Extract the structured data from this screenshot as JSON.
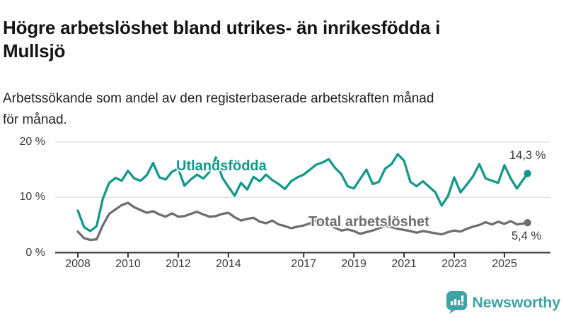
{
  "header": {
    "title": "Högre arbetslöshet bland utrikes- än inrikesfödda i\nMullsjö",
    "subtitle": "Arbetssökande som andel av den registerbaserade arbetskraften månad\nför månad."
  },
  "chart_data": {
    "type": "line",
    "unit": "%",
    "title": "Högre arbetslöshet bland utrikes- än inrikesfödda i Mullsjö",
    "x_axis": "year (monthly data)",
    "x_start": 2008.0,
    "x_step_years": 0.25,
    "x_last": 2025.92,
    "x_tick_labels": [
      "2008",
      "2010",
      "2012",
      "2014",
      "2017",
      "2019",
      "2021",
      "2023",
      "2025"
    ],
    "y_ticks": [
      0,
      10,
      20
    ],
    "y_tick_labels": [
      "0 %",
      "10 %",
      "20 %"
    ],
    "ylim": [
      0,
      21
    ],
    "grid": "horizontal",
    "series": [
      {
        "name": "Utlandsfödda",
        "color": "#10998c",
        "end_label": "14,3 %",
        "end_value": 14.3,
        "values": [
          7.6,
          4.6,
          3.9,
          4.8,
          9.8,
          12.6,
          13.5,
          13.0,
          14.8,
          13.4,
          13.0,
          14.0,
          16.2,
          13.6,
          13.2,
          14.6,
          15.2,
          12.1,
          13.2,
          14.1,
          13.4,
          14.6,
          17.2,
          13.6,
          11.9,
          10.3,
          12.6,
          11.4,
          13.7,
          12.9,
          14.1,
          13.1,
          12.4,
          11.5,
          12.9,
          13.6,
          14.1,
          15.0,
          15.9,
          16.3,
          16.9,
          15.3,
          14.2,
          12.0,
          11.6,
          13.3,
          15.0,
          12.4,
          12.8,
          15.2,
          16.0,
          17.8,
          16.6,
          12.8,
          12.0,
          12.9,
          11.9,
          10.9,
          8.5,
          10.2,
          13.6,
          10.9,
          12.3,
          13.8,
          16.0,
          13.4,
          13.0,
          12.6,
          15.8,
          13.4,
          11.6,
          14.3
        ]
      },
      {
        "name": "Total arbetslöshet",
        "color": "#6e6e72",
        "end_label": "5,4 %",
        "end_value": 5.4,
        "values": [
          3.8,
          2.6,
          2.3,
          2.4,
          5.0,
          7.0,
          7.8,
          8.6,
          9.0,
          8.2,
          7.7,
          7.2,
          7.5,
          6.9,
          6.5,
          7.1,
          6.5,
          6.6,
          7.0,
          7.4,
          6.9,
          6.5,
          6.6,
          7.0,
          7.2,
          6.4,
          5.8,
          6.1,
          6.3,
          5.6,
          5.3,
          5.8,
          5.1,
          4.8,
          4.4,
          4.7,
          4.9,
          5.3,
          5.9,
          5.5,
          5.0,
          4.5,
          4.0,
          4.2,
          3.9,
          3.4,
          3.7,
          4.0,
          4.4,
          4.8,
          4.6,
          4.3,
          4.1,
          3.9,
          3.6,
          3.9,
          3.7,
          3.5,
          3.3,
          3.7,
          4.0,
          3.8,
          4.3,
          4.7,
          5.0,
          5.5,
          5.1,
          5.6,
          5.2,
          5.7,
          5.1,
          5.4
        ]
      }
    ],
    "styles": {
      "grid_color": "#e2e2e2",
      "axis_color": "#333333",
      "text_color": "#3a3a3a"
    }
  },
  "branding": {
    "logo_text": "Newsworthy",
    "logo_color": "#3fa3a3",
    "logo_icon": "bar-chart-speech-bubble-icon"
  }
}
